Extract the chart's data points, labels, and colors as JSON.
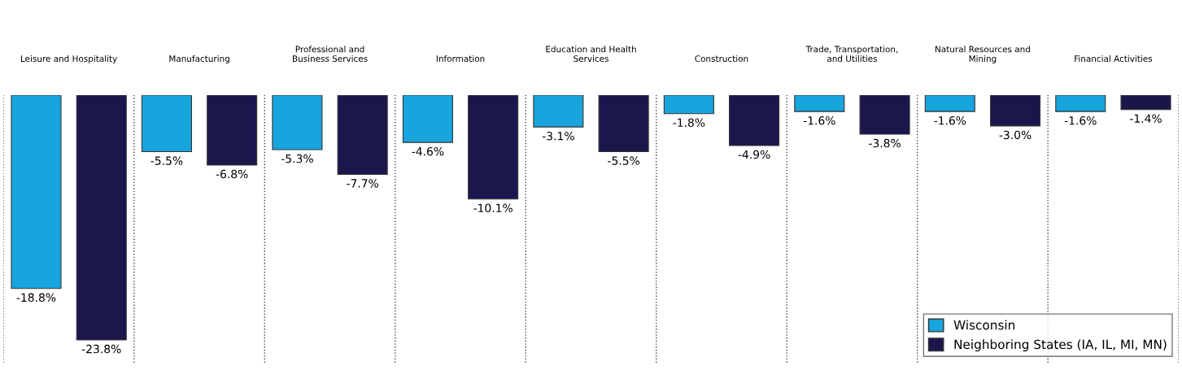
{
  "chart_data": {
    "type": "bar",
    "categories": [
      "Leisure and Hospitality",
      "Manufacturing",
      "Professional and\nBusiness Services",
      "Information",
      "Education and Health\nServices",
      "Construction",
      "Trade, Transportation,\nand Utilities",
      "Natural Resources and\nMining",
      "Financial Activities"
    ],
    "series": [
      {
        "name": "Wisconsin",
        "color": "#18a4dc",
        "values": [
          -18.8,
          -5.5,
          -5.3,
          -4.6,
          -3.1,
          -1.8,
          -1.6,
          -1.6,
          -1.6
        ],
        "value_labels": [
          "-18.8%",
          "-5.5%",
          "-5.3%",
          "-4.6%",
          "-3.1%",
          "-1.8%",
          "-1.6%",
          "-1.6%",
          "-1.6%"
        ]
      },
      {
        "name": "Neighboring States (IA, IL, MI, MN)",
        "color": "#1b174d",
        "values": [
          -23.8,
          -6.8,
          -7.7,
          -10.1,
          -5.5,
          -4.9,
          -3.8,
          -3.0,
          -1.4
        ],
        "value_labels": [
          "-23.8%",
          "-6.8%",
          "-7.7%",
          "-10.1%",
          "-5.5%",
          "-4.9%",
          "-3.8%",
          "-3.0%",
          "-1.4%"
        ]
      }
    ],
    "ylim": [
      -26,
      0
    ],
    "tick_labels": "x",
    "grid": "x",
    "legend": "bottom right"
  }
}
